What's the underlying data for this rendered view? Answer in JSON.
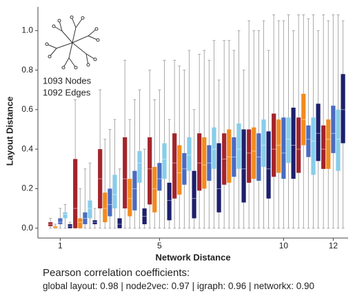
{
  "chart_data": {
    "type": "box",
    "xlabel": "Network Distance",
    "ylabel": "Layout Distance",
    "x": [
      1,
      2,
      3,
      4,
      5,
      6,
      7,
      8,
      9,
      10,
      11,
      12
    ],
    "xlim": [
      0.1,
      12.6
    ],
    "xticks": [
      1,
      5,
      10,
      12
    ],
    "ylim": [
      -0.05,
      1.12
    ],
    "yticks": [
      {
        "value": 0,
        "label": "0.0"
      },
      {
        "value": 0.2,
        "label": "0.2"
      },
      {
        "value": 0.4,
        "label": "0.4"
      },
      {
        "value": 0.6,
        "label": "0.6"
      },
      {
        "value": 0.8,
        "label": "0.8"
      },
      {
        "value": 1.0,
        "label": "1.0"
      }
    ],
    "series": [
      {
        "color": "#a3242b",
        "boxes": [
          [
            0,
            0.01,
            0.02,
            0.03,
            0.05
          ],
          [
            0,
            0,
            0.1,
            0.35,
            0.65
          ],
          [
            0,
            0.1,
            0.25,
            0.4,
            0.7
          ],
          [
            0,
            0.1,
            0.25,
            0.46,
            0.85
          ],
          [
            0,
            0.12,
            0.3,
            0.46,
            0.8
          ],
          [
            0,
            0.15,
            0.33,
            0.48,
            0.85
          ],
          [
            0,
            0.19,
            0.33,
            0.48,
            0.88
          ],
          [
            0,
            0.22,
            0.35,
            0.48,
            0.95
          ],
          [
            0,
            0.23,
            0.38,
            0.5,
            1.05
          ],
          [
            0,
            0.26,
            0.4,
            0.58,
            1.08
          ],
          [
            0,
            0.28,
            0.4,
            0.56,
            1.08
          ],
          [
            0,
            0.3,
            0.4,
            0.52,
            1.08
          ]
        ]
      },
      {
        "color": "#f28b1f",
        "boxes": [
          [
            0,
            0,
            0.005,
            0.01,
            0.02
          ],
          [
            0,
            0,
            0.03,
            0.05,
            0.2
          ],
          [
            0,
            0.03,
            0.1,
            0.18,
            0.45
          ],
          [
            0,
            0.06,
            0.15,
            0.25,
            0.55
          ],
          [
            0,
            0.08,
            0.2,
            0.31,
            0.65
          ],
          [
            0,
            0.17,
            0.28,
            0.42,
            0.82
          ],
          [
            0,
            0.2,
            0.32,
            0.46,
            0.9
          ],
          [
            0,
            0.23,
            0.36,
            0.5,
            0.95
          ],
          [
            0,
            0.25,
            0.39,
            0.51,
            1.0
          ],
          [
            0,
            0.28,
            0.42,
            0.55,
            1.05
          ],
          [
            0,
            0.42,
            0.55,
            0.68,
            1.08
          ],
          [
            0,
            0.3,
            0.45,
            0.55,
            1.05
          ]
        ]
      },
      {
        "color": "#4a6cc0",
        "boxes": [
          [
            0,
            0.02,
            0.03,
            0.05,
            0.1
          ],
          [
            0,
            0.02,
            0.05,
            0.08,
            0.3
          ],
          [
            0,
            0.06,
            0.12,
            0.2,
            0.5
          ],
          [
            0,
            0.09,
            0.2,
            0.29,
            0.65
          ],
          [
            0,
            0.19,
            0.25,
            0.33,
            0.7
          ],
          [
            0,
            0.22,
            0.3,
            0.38,
            0.8
          ],
          [
            0,
            0.24,
            0.33,
            0.42,
            0.85
          ],
          [
            0,
            0.26,
            0.36,
            0.46,
            0.9
          ],
          [
            0,
            0.24,
            0.36,
            0.48,
            1.0
          ],
          [
            0,
            0.25,
            0.38,
            0.56,
            1.05
          ],
          [
            0,
            0.36,
            0.45,
            0.52,
            1.06
          ],
          [
            0,
            0.38,
            0.48,
            0.62,
            1.08
          ]
        ]
      },
      {
        "color": "#87cdea",
        "boxes": [
          [
            0,
            0.05,
            0.07,
            0.08,
            0.12
          ],
          [
            0,
            0.05,
            0.1,
            0.14,
            0.33
          ],
          [
            0,
            0.1,
            0.17,
            0.27,
            0.55
          ],
          [
            0,
            0.23,
            0.33,
            0.39,
            0.7
          ],
          [
            0,
            0.25,
            0.35,
            0.43,
            0.85
          ],
          [
            0,
            0.29,
            0.37,
            0.46,
            0.9
          ],
          [
            0,
            0.3,
            0.4,
            0.51,
            0.95
          ],
          [
            0,
            0.3,
            0.4,
            0.53,
            1.0
          ],
          [
            0,
            0.31,
            0.42,
            0.55,
            1.05
          ],
          [
            0,
            0.33,
            0.45,
            0.56,
            1.08
          ],
          [
            0,
            0.27,
            0.44,
            0.56,
            1.08
          ],
          [
            0,
            0.29,
            0.45,
            0.6,
            1.08
          ]
        ]
      },
      {
        "color": "#1d1f6c",
        "boxes": [
          [
            0,
            0,
            0.01,
            0.02,
            0.03
          ],
          [
            0,
            0.02,
            0.03,
            0.04,
            0.1
          ],
          [
            0,
            0,
            0.02,
            0.05,
            0.3
          ],
          [
            0,
            0.02,
            0.06,
            0.1,
            0.4
          ],
          [
            0,
            0.04,
            0.14,
            0.23,
            0.55
          ],
          [
            0,
            0.05,
            0.15,
            0.29,
            0.6
          ],
          [
            0,
            0.08,
            0.2,
            0.43,
            0.75
          ],
          [
            0,
            0.13,
            0.3,
            0.5,
            0.8
          ],
          [
            0,
            0.15,
            0.3,
            0.49,
            0.9
          ],
          [
            0,
            0.25,
            0.42,
            0.61,
            1.0
          ],
          [
            0,
            0.34,
            0.48,
            0.63,
            1.0
          ],
          [
            0,
            0.43,
            0.6,
            0.78,
            1.05
          ]
        ]
      }
    ],
    "inset": {
      "nodes": "1093 Nodes",
      "edges": "1092 Edges"
    },
    "footer": {
      "title": "Pearson correlation coefficients:",
      "text": "global layout: 0.98 | node2vec: 0.97 | igraph: 0.96 | networkx: 0.90"
    }
  }
}
